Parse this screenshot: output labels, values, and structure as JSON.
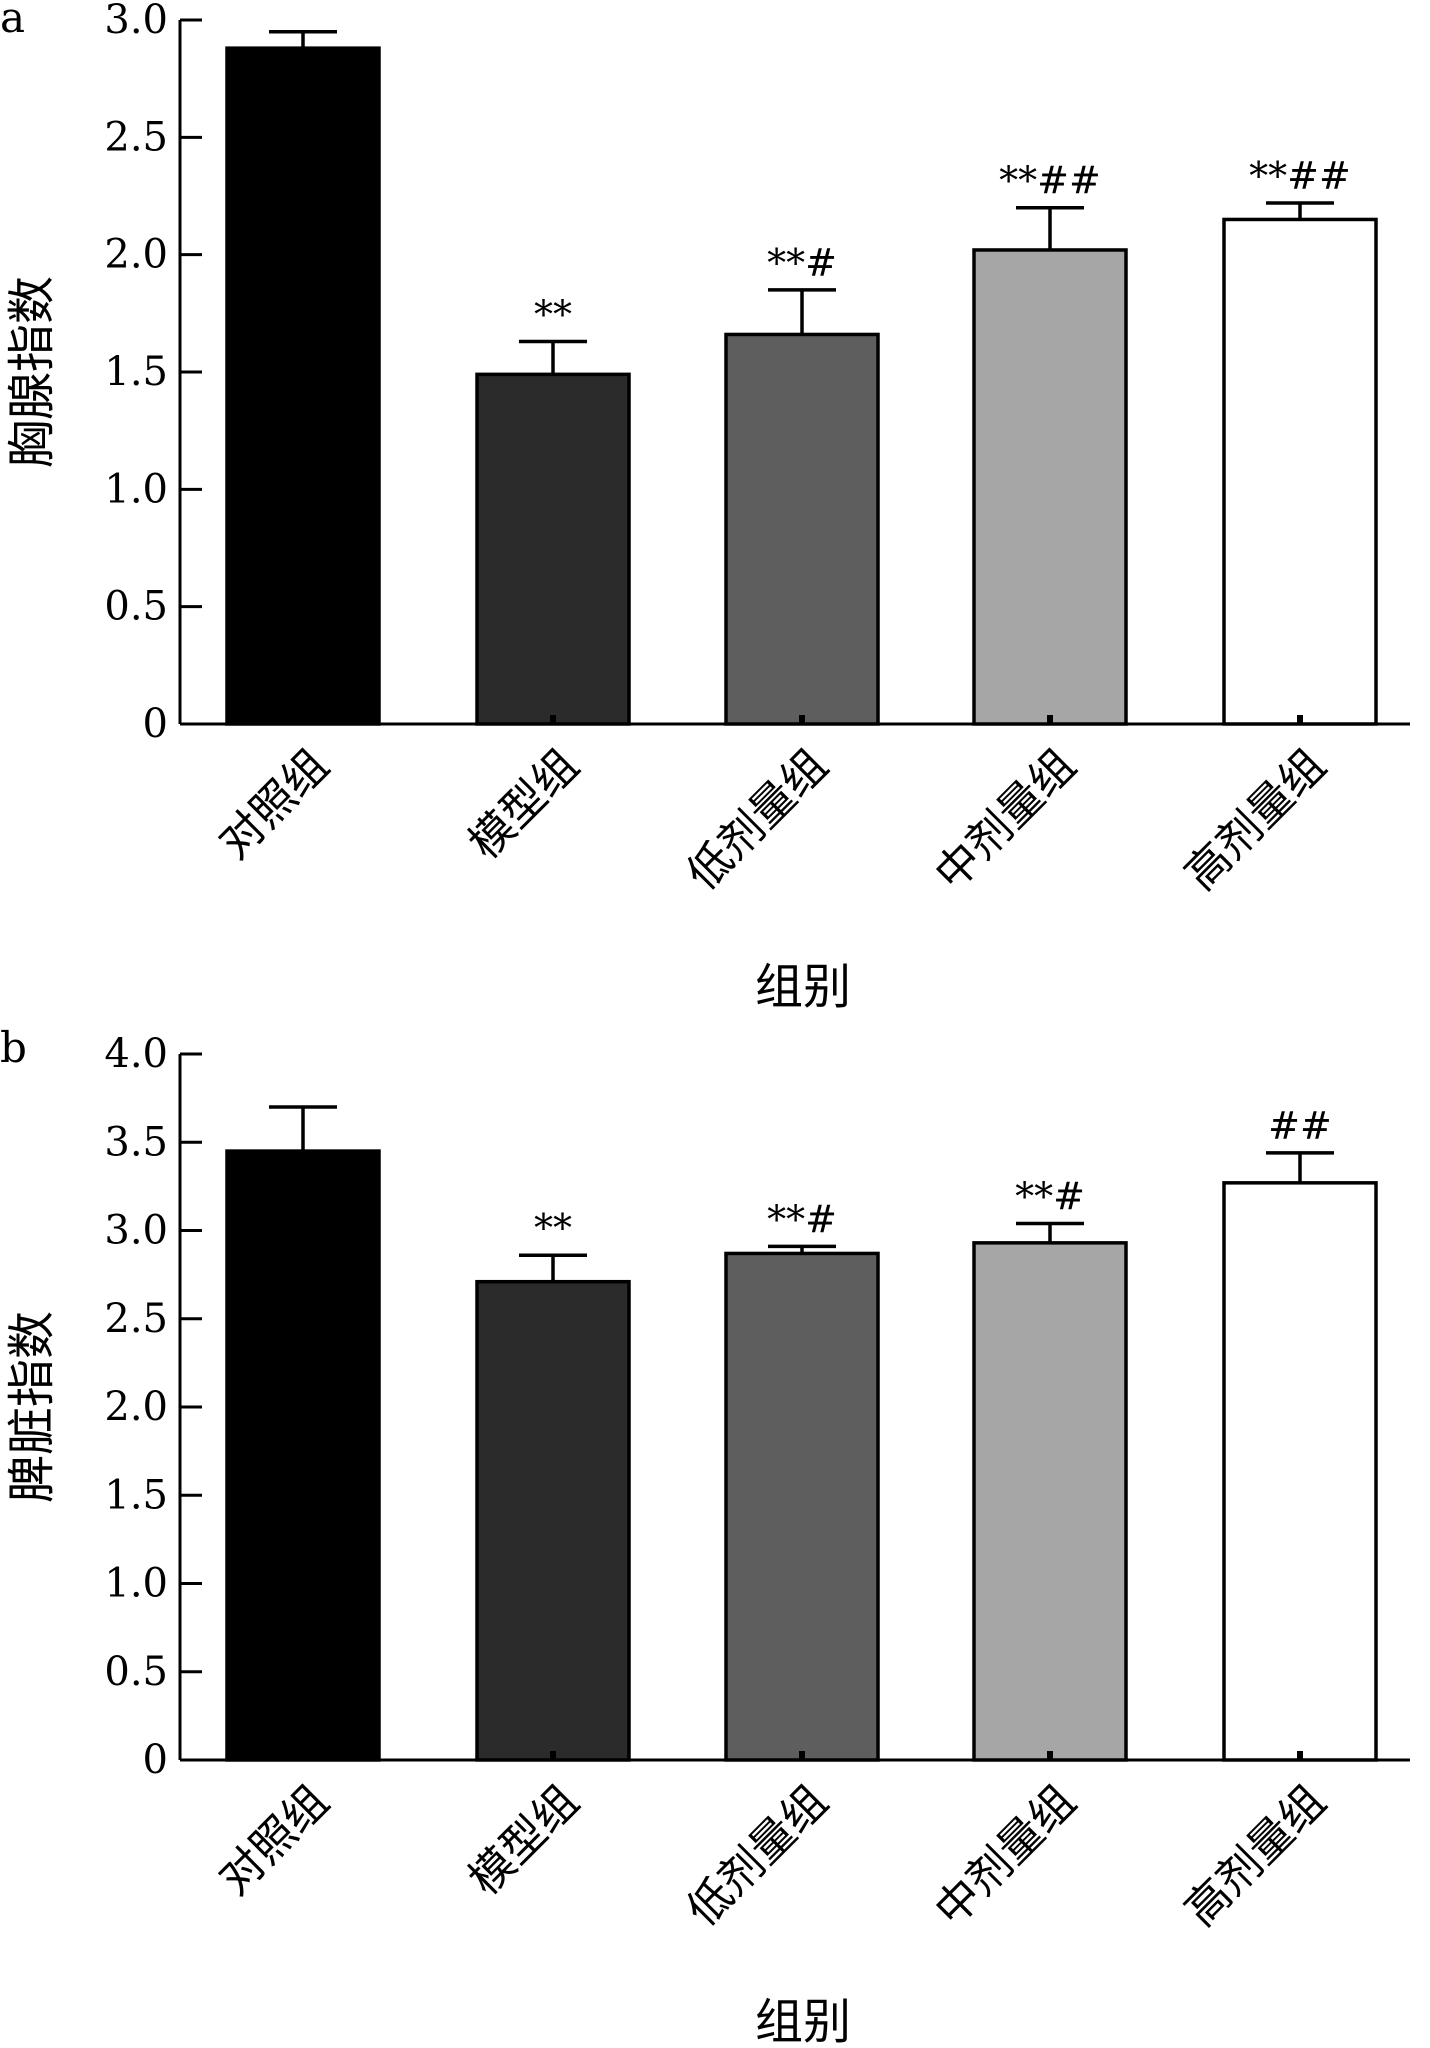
{
  "chart_data": [
    {
      "type": "bar",
      "panel": "a",
      "title": "",
      "xlabel": "组别",
      "ylabel": "胸腺指数",
      "ylim": [
        0,
        3.0
      ],
      "yticks": [
        0,
        0.5,
        1.0,
        1.5,
        2.0,
        2.5,
        3.0
      ],
      "ytick_labels": [
        "0",
        "0.5",
        "1.0",
        "1.5",
        "2.0",
        "2.5",
        "3.0"
      ],
      "categories": [
        "对照组",
        "模型组",
        "低剂量组",
        "中剂量组",
        "高剂量组"
      ],
      "values": [
        2.88,
        1.49,
        1.66,
        2.02,
        2.15
      ],
      "errors": [
        0.07,
        0.14,
        0.19,
        0.18,
        0.07
      ],
      "significance": [
        "",
        "**",
        "**#",
        "**##",
        "**##"
      ],
      "bar_colors": [
        "#000000",
        "#2b2b2b",
        "#5e5e5e",
        "#a6a6a6",
        "#ffffff"
      ],
      "grid": false
    },
    {
      "type": "bar",
      "panel": "b",
      "title": "",
      "xlabel": "组别",
      "ylabel": "脾脏指数",
      "ylim": [
        0,
        4.0
      ],
      "yticks": [
        0,
        0.5,
        1.0,
        1.5,
        2.0,
        2.5,
        3.0,
        3.5,
        4.0
      ],
      "ytick_labels": [
        "0",
        "0.5",
        "1.0",
        "1.5",
        "2.0",
        "2.5",
        "3.0",
        "3.5",
        "4.0"
      ],
      "categories": [
        "对照组",
        "模型组",
        "低剂量组",
        "中剂量组",
        "高剂量组"
      ],
      "values": [
        3.45,
        2.71,
        2.87,
        2.93,
        3.27
      ],
      "errors": [
        0.25,
        0.15,
        0.04,
        0.11,
        0.17
      ],
      "significance": [
        "",
        "**",
        "**#",
        "**#",
        "##"
      ],
      "bar_colors": [
        "#000000",
        "#2b2b2b",
        "#5e5e5e",
        "#a6a6a6",
        "#ffffff"
      ],
      "grid": false
    }
  ]
}
